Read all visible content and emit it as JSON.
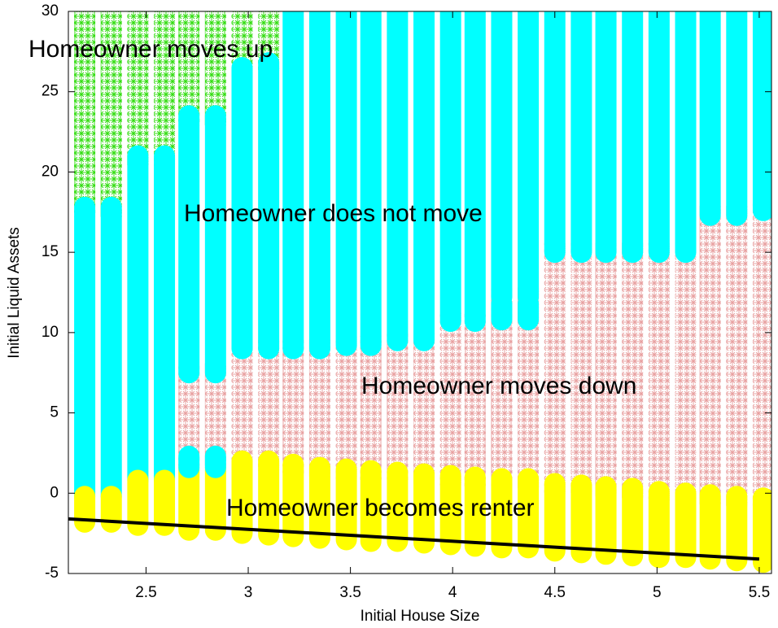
{
  "chart_data": {
    "type": "range-bar",
    "xlabel": "Initial House Size",
    "ylabel": "Initial Liquid Assets",
    "annotations": [
      "Homeowner moves up",
      "Homeowner does not move",
      "Homeowner moves down",
      "Homeowner becomes renter"
    ],
    "x": [
      2.2,
      2.33,
      2.46,
      2.59,
      2.71,
      2.84,
      2.97,
      3.1,
      3.22,
      3.35,
      3.48,
      3.6,
      3.73,
      3.86,
      3.99,
      4.11,
      4.24,
      4.37,
      4.5,
      4.63,
      4.75,
      4.88,
      5.01,
      5.14,
      5.26,
      5.39,
      5.52
    ],
    "series": [
      {
        "color": "#ffff00",
        "marker": "circle",
        "low": [
          -1.8,
          -1.8,
          -2,
          -2,
          -2.3,
          -2.3,
          -2.5,
          -2.6,
          -2.7,
          -2.8,
          -2.9,
          -3,
          -3,
          -3.1,
          -3.2,
          -3.3,
          -3.4,
          -3.4,
          -3.6,
          -3.7,
          -3.8,
          -3.9,
          -4,
          -4,
          -4.1,
          -4.2,
          -4.3
        ],
        "high": [
          -0.2,
          -0.2,
          0.8,
          0.8,
          1.6,
          1.6,
          2,
          2,
          1.8,
          1.6,
          1.5,
          1.4,
          1.3,
          1.2,
          1.1,
          1,
          0.9,
          0.9,
          0.6,
          0.5,
          0.4,
          0.3,
          0.1,
          0,
          -0.1,
          -0.2,
          -0.3
        ]
      },
      {
        "color": "#e8a0a0",
        "marker": "asterisk",
        "low": [
          null,
          null,
          null,
          null,
          2.3,
          2.3,
          2,
          2,
          1.8,
          1.6,
          1.5,
          1.4,
          1.3,
          1.2,
          1.1,
          1,
          0.9,
          0.9,
          0.6,
          0.5,
          0.4,
          0.3,
          0.1,
          0,
          -0.1,
          -0.2,
          -0.3
        ],
        "high": [
          null,
          null,
          null,
          null,
          7.5,
          7.5,
          9,
          9,
          9,
          9,
          9.2,
          9.2,
          9.5,
          9.5,
          10.7,
          10.7,
          12.2,
          12.2,
          15,
          15,
          15,
          15,
          15,
          15,
          17.3,
          17.3,
          17.6
        ]
      },
      {
        "color": "#00ffff",
        "marker": "circle",
        "low": [
          -0.2,
          -0.2,
          0.8,
          0.8,
          7.5,
          7.5,
          9,
          9,
          9,
          9,
          9.2,
          9.2,
          9.5,
          9.5,
          10.7,
          10.7,
          12.2,
          12.2,
          15,
          15,
          15,
          15,
          15,
          15,
          17.3,
          17.3,
          17.6
        ],
        "high": [
          17.8,
          17.8,
          21,
          21,
          23.5,
          23.5,
          26.5,
          26.8,
          30,
          30,
          30,
          30,
          30,
          30,
          30,
          30,
          30,
          30,
          30,
          30,
          30,
          30,
          30,
          30,
          30,
          30,
          30
        ]
      },
      {
        "color": "#00ffff",
        "marker": "circle",
        "low": [
          null,
          null,
          null,
          null,
          1.6,
          1.6,
          null,
          null,
          null,
          null,
          null,
          null,
          null,
          null,
          null,
          null,
          10.8,
          10.8,
          null,
          null,
          null,
          null,
          null,
          null,
          null,
          null,
          null
        ],
        "high": [
          null,
          null,
          null,
          null,
          2.3,
          2.3,
          null,
          null,
          null,
          null,
          null,
          null,
          null,
          null,
          null,
          null,
          11.8,
          11.8,
          null,
          null,
          null,
          null,
          null,
          null,
          null,
          null,
          null
        ]
      },
      {
        "color": "#33dd11",
        "marker": "asterisk",
        "low": [
          17.8,
          17.8,
          21,
          21,
          23.5,
          23.5,
          26.5,
          26.8,
          null,
          null,
          null,
          null,
          null,
          null,
          null,
          null,
          null,
          null,
          null,
          null,
          null,
          null,
          null,
          null,
          null,
          null,
          null
        ],
        "high": [
          30,
          30,
          30,
          30,
          30,
          30,
          30,
          30,
          null,
          null,
          null,
          null,
          null,
          null,
          null,
          null,
          null,
          null,
          null,
          null,
          null,
          null,
          null,
          null,
          null,
          null,
          null
        ]
      }
    ],
    "boundary": {
      "color": "#000000",
      "x": [
        2.12,
        5.5
      ],
      "y": [
        -1.6,
        -4.1
      ]
    },
    "xlim": [
      2.12,
      5.56
    ],
    "ylim": [
      -5,
      30
    ],
    "xticks": [
      2.5,
      3,
      3.5,
      4,
      4.5,
      5,
      5.5
    ],
    "yticks": [
      -5,
      0,
      5,
      10,
      15,
      20,
      25,
      30
    ]
  }
}
